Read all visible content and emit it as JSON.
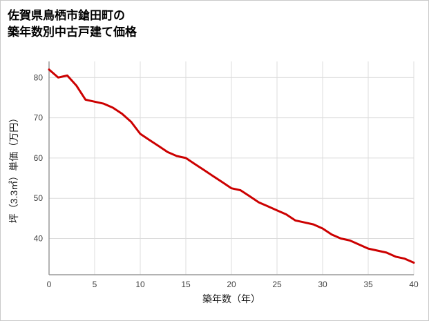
{
  "page": {
    "title": "佐賀県鳥栖市鎗田町の\n築年数別中古戸建て価格"
  },
  "chart_data": {
    "type": "line",
    "title": "佐賀県鳥栖市鎗田町の築年数別中古戸建て価格",
    "xlabel": "築年数（年）",
    "ylabel": "坪（3.3㎡）単価（万円）",
    "x": [
      0,
      1,
      2,
      3,
      4,
      5,
      6,
      7,
      8,
      9,
      10,
      11,
      12,
      13,
      14,
      15,
      16,
      17,
      18,
      19,
      20,
      21,
      22,
      23,
      24,
      25,
      26,
      27,
      28,
      29,
      30,
      31,
      32,
      33,
      34,
      35,
      36,
      37,
      38,
      39,
      40
    ],
    "y": [
      82,
      80,
      80.5,
      78,
      74.5,
      74,
      73.5,
      72.5,
      71,
      69,
      66,
      64.5,
      63,
      61.5,
      60.5,
      60,
      58.5,
      57,
      55.5,
      54,
      52.5,
      52,
      50.5,
      49,
      48,
      47,
      46,
      44.5,
      44,
      43.5,
      42.5,
      41,
      40,
      39.5,
      38.5,
      37.5,
      37,
      36.5,
      35.5,
      35,
      34
    ],
    "xlim": [
      0,
      40
    ],
    "ylim": [
      31,
      84
    ],
    "xticks": [
      0,
      5,
      10,
      15,
      20,
      25,
      30,
      35,
      40
    ],
    "yticks": [
      40,
      50,
      60,
      70,
      80
    ],
    "grid": true,
    "legend_position": "none",
    "line_color": "#cc0000",
    "line_width": 3,
    "grid_color": "#dcdcdc",
    "axis_color": "#9a9a9a"
  }
}
